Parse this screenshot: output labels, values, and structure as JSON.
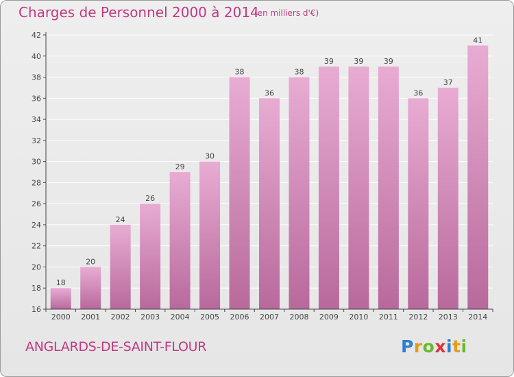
{
  "chart_data": {
    "type": "bar",
    "title": "Charges de Personnel 2000 à 2014",
    "subtitle": "(en milliers d'€)",
    "categories": [
      "2000",
      "2001",
      "2002",
      "2003",
      "2004",
      "2005",
      "2006",
      "2007",
      "2008",
      "2009",
      "2010",
      "2011",
      "2012",
      "2013",
      "2014"
    ],
    "values": [
      18,
      20,
      24,
      26,
      29,
      30,
      38,
      36,
      38,
      39,
      39,
      39,
      36,
      37,
      41
    ],
    "ylim": [
      16,
      42
    ],
    "yticks": [
      16,
      18,
      20,
      22,
      24,
      26,
      28,
      30,
      32,
      34,
      36,
      38,
      40,
      42
    ],
    "xlabel": "",
    "ylabel": "",
    "grid": true,
    "bar_color": "#d98fbf",
    "bar_color_light": "#e8acd3",
    "bar_color_dark": "#b8699c"
  },
  "commune": "ANGLARDS-DE-SAINT-FLOUR",
  "logo": {
    "letters": [
      "P",
      "r",
      "o",
      "x",
      "i",
      "t",
      "i"
    ],
    "colors": [
      "#2f7fd0",
      "#e89a1a",
      "#6ab82e",
      "#d8343a",
      "#2f7fd0",
      "#e89a1a",
      "#6ab82e"
    ]
  },
  "colors": {
    "accent": "#c03a82",
    "grid": "#ffffff",
    "axis": "#444444"
  }
}
